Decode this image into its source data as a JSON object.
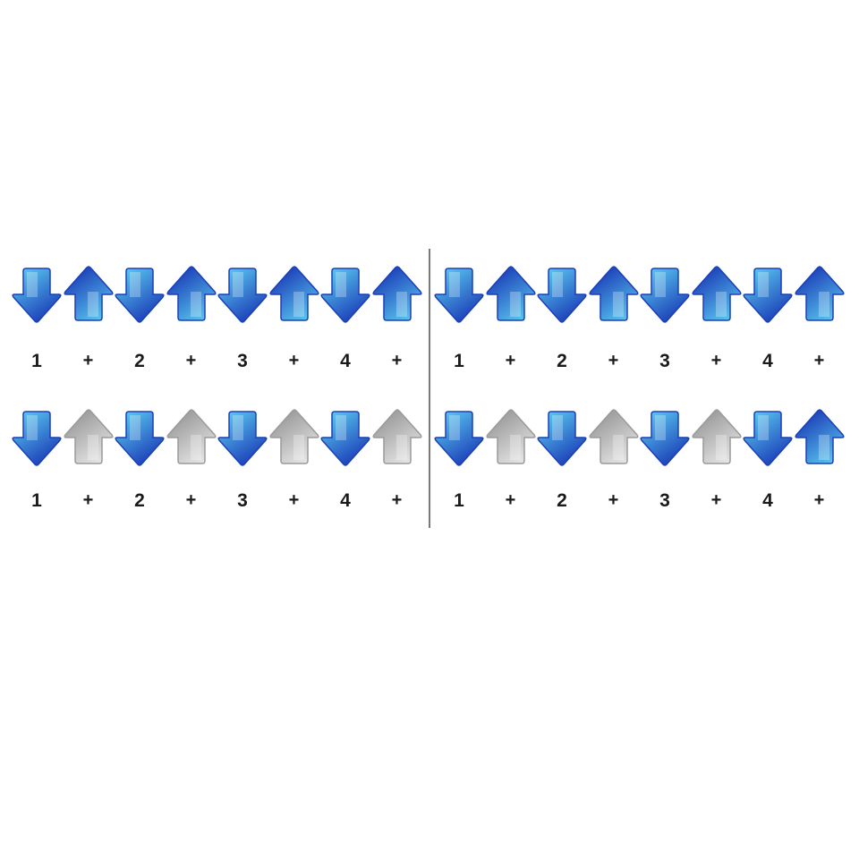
{
  "colors": {
    "arrow_active_light": "#5fd6f5",
    "arrow_active_dark": "#1c3fb8",
    "arrow_rest_light": "#f0f0f0",
    "arrow_rest_dark": "#9a9a9a",
    "divider": "#7a7a7a",
    "count_text": "#1a1a1a"
  },
  "panels": [
    {
      "rows": [
        {
          "strokes": [
            "down",
            "up",
            "down",
            "up",
            "down",
            "up",
            "down",
            "up"
          ],
          "states": [
            "active",
            "active",
            "active",
            "active",
            "active",
            "active",
            "active",
            "active"
          ],
          "counts": [
            "1",
            "+",
            "2",
            "+",
            "3",
            "+",
            "4",
            "+"
          ]
        },
        {
          "strokes": [
            "down",
            "up",
            "down",
            "up",
            "down",
            "up",
            "down",
            "up"
          ],
          "states": [
            "active",
            "rest",
            "active",
            "rest",
            "active",
            "rest",
            "active",
            "rest"
          ],
          "counts": [
            "1",
            "+",
            "2",
            "+",
            "3",
            "+",
            "4",
            "+"
          ]
        }
      ]
    },
    {
      "rows": [
        {
          "strokes": [
            "down",
            "up",
            "down",
            "up",
            "down",
            "up",
            "down",
            "up"
          ],
          "states": [
            "active",
            "active",
            "active",
            "active",
            "active",
            "active",
            "active",
            "active"
          ],
          "counts": [
            "1",
            "+",
            "2",
            "+",
            "3",
            "+",
            "4",
            "+"
          ]
        },
        {
          "strokes": [
            "down",
            "up",
            "down",
            "up",
            "down",
            "up",
            "down",
            "up"
          ],
          "states": [
            "active",
            "rest",
            "active",
            "rest",
            "active",
            "rest",
            "active",
            "active"
          ],
          "counts": [
            "1",
            "+",
            "2",
            "+",
            "3",
            "+",
            "4",
            "+"
          ]
        }
      ]
    }
  ]
}
